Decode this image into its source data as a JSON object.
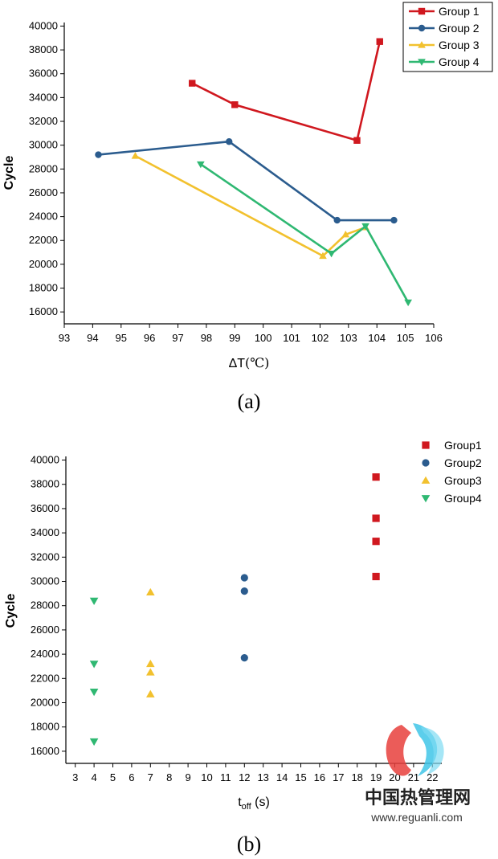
{
  "chart_data": [
    {
      "type": "line",
      "panel_label": "(a)",
      "xlabel_main": "ΔT",
      "xlabel_unit": "(℃)",
      "ylabel": "Cycle",
      "xlim": [
        93,
        106
      ],
      "ylim": [
        15000,
        40300
      ],
      "xticks": [
        93,
        94,
        95,
        96,
        97,
        98,
        99,
        100,
        101,
        102,
        103,
        104,
        105,
        106
      ],
      "yticks": [
        16000,
        18000,
        20000,
        22000,
        24000,
        26000,
        28000,
        30000,
        32000,
        34000,
        36000,
        38000,
        40000
      ],
      "legend_position": "top-right",
      "series": [
        {
          "name": "Group 1",
          "color": "#d0181f",
          "marker": "square",
          "x": [
            97.5,
            99.0,
            103.3,
            104.1
          ],
          "y": [
            35200,
            33400,
            30400,
            38700
          ]
        },
        {
          "name": "Group 2",
          "color": "#2b5c8e",
          "marker": "circle",
          "x": [
            94.2,
            98.8,
            102.6,
            104.6
          ],
          "y": [
            29200,
            30300,
            23700,
            23700
          ]
        },
        {
          "name": "Group 3",
          "color": "#f2c12e",
          "marker": "triangle-up",
          "x": [
            95.5,
            102.1,
            102.9,
            103.6
          ],
          "y": [
            29100,
            20700,
            22500,
            23100
          ]
        },
        {
          "name": "Group 4",
          "color": "#2fb872",
          "marker": "triangle-down",
          "x": [
            97.8,
            102.4,
            103.6,
            105.1
          ],
          "y": [
            28400,
            20900,
            23200,
            16800
          ]
        }
      ]
    },
    {
      "type": "scatter",
      "panel_label": "(b)",
      "xlabel_main": "t",
      "xlabel_sub": "off",
      "xlabel_unit": " (s)",
      "ylabel": "Cycle",
      "xlim": [
        2.5,
        22.5
      ],
      "ylim": [
        15000,
        40300
      ],
      "xticks": [
        3,
        4,
        5,
        6,
        7,
        8,
        9,
        10,
        11,
        12,
        13,
        14,
        15,
        16,
        17,
        18,
        19,
        20,
        21,
        22
      ],
      "yticks": [
        16000,
        18000,
        20000,
        22000,
        24000,
        26000,
        28000,
        30000,
        32000,
        34000,
        36000,
        38000,
        40000
      ],
      "legend_position": "top-right",
      "series": [
        {
          "name": "Group1",
          "color": "#d0181f",
          "marker": "square",
          "x": [
            19,
            19,
            19,
            19
          ],
          "y": [
            38600,
            35200,
            33300,
            30400
          ]
        },
        {
          "name": "Group2",
          "color": "#2b5c8e",
          "marker": "circle",
          "x": [
            12,
            12,
            12
          ],
          "y": [
            30300,
            29200,
            23700
          ]
        },
        {
          "name": "Group3",
          "color": "#f2c12e",
          "marker": "triangle-up",
          "x": [
            7,
            7,
            7,
            7
          ],
          "y": [
            29100,
            23200,
            22500,
            20700
          ]
        },
        {
          "name": "Group4",
          "color": "#2fb872",
          "marker": "triangle-down",
          "x": [
            4,
            4,
            4,
            4
          ],
          "y": [
            28400,
            23200,
            20900,
            16800
          ]
        }
      ]
    }
  ],
  "watermark": {
    "title": "中国热管理网",
    "url": "www.reguanli.com",
    "colors": {
      "red": "#e8403c",
      "cyan": "#3fc6e8"
    }
  }
}
